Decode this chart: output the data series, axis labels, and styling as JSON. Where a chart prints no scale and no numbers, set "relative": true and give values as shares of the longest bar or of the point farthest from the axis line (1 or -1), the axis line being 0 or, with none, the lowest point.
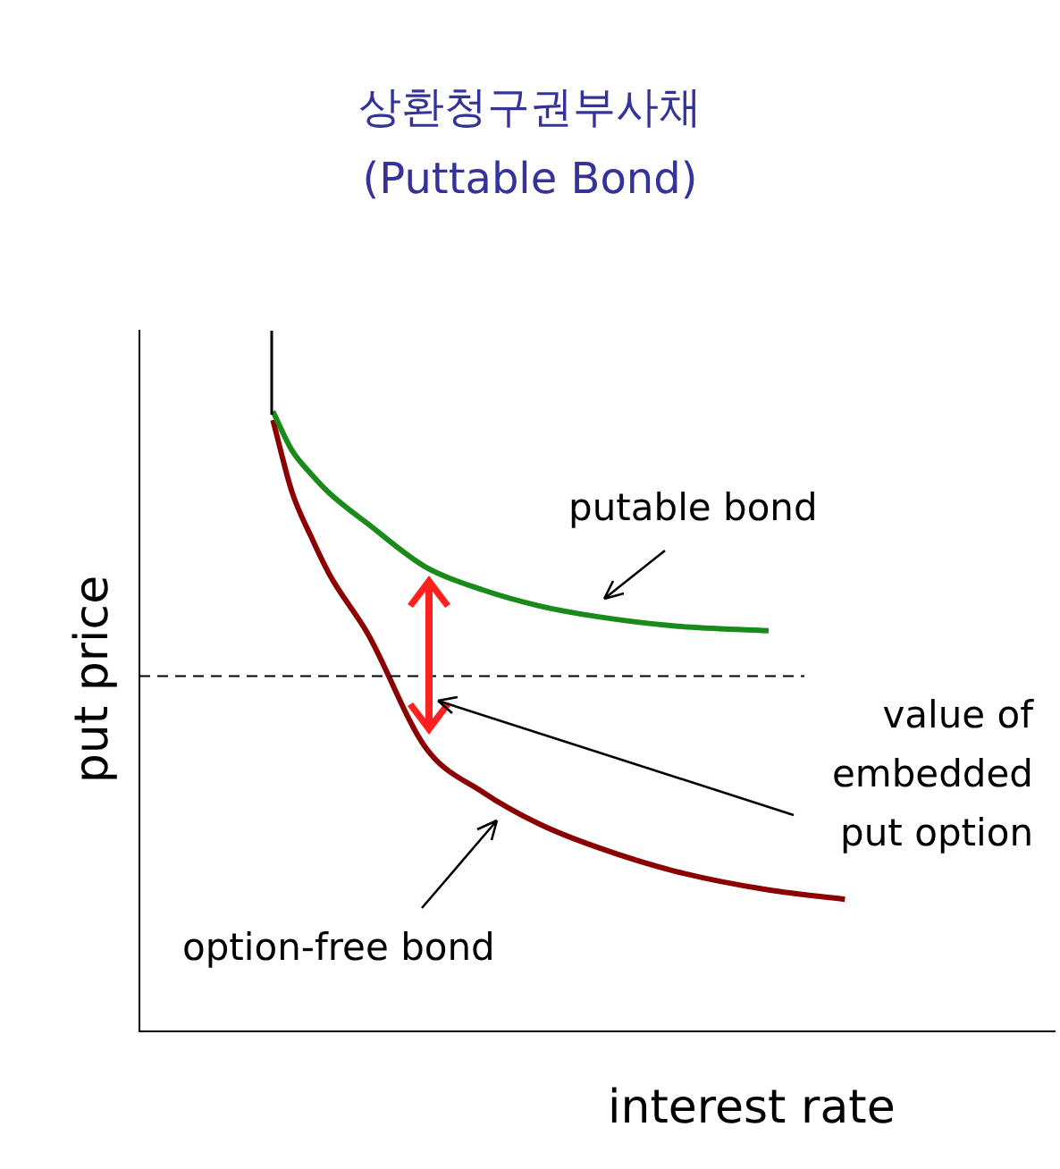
{
  "chart_data": {
    "type": "line",
    "title": "상환청구권부사채",
    "subtitle": "(Puttable Bond)",
    "xlabel": "interest rate",
    "ylabel": "put price",
    "relative": true,
    "categories": [
      null,
      null,
      null,
      null,
      null,
      null,
      null,
      null,
      null,
      null,
      null,
      null,
      null,
      null,
      null,
      null,
      null,
      null,
      null,
      null,
      null,
      null,
      null,
      null,
      null,
      null,
      null,
      null,
      null,
      null,
      null,
      null,
      null,
      null,
      null,
      null,
      null,
      null,
      null,
      null,
      null,
      null,
      null,
      null,
      null,
      null,
      null,
      null,
      null
    ],
    "series": [
      {
        "color": "#1a8a1a",
        "values": [
          null,
          null,
          null,
          null,
          null,
          null,
          null,
          1.0,
          0.937,
          0.899,
          0.867,
          null,
          0.818,
          null,
          null,
          0.749,
          null,
          null,
          0.712,
          null,
          null,
          0.686,
          null,
          null,
          0.669,
          null,
          null,
          null,
          0.654,
          null,
          null,
          null,
          null,
          0.646,
          null,
          null,
          null,
          null,
          null,
          null,
          null,
          null,
          null,
          null,
          null,
          null,
          null,
          null,
          null
        ]
      },
      {
        "color": "#8b0000",
        "values": [
          null,
          null,
          null,
          null,
          null,
          null,
          null,
          0.986,
          0.87,
          0.798,
          0.735,
          null,
          0.64,
          null,
          null,
          0.458,
          null,
          null,
          0.386,
          null,
          null,
          0.334,
          null,
          null,
          0.297,
          null,
          null,
          null,
          0.259,
          null,
          null,
          null,
          null,
          0.228,
          null,
          null,
          null,
          0.213,
          null,
          null,
          null,
          null,
          null,
          null,
          null,
          null,
          null,
          null,
          null
        ]
      }
    ],
    "ref_lines": [
      {
        "axis": "y",
        "value": 0.573,
        "color": "#000000",
        "line_style": "dashed"
      }
    ],
    "annotations": [
      "putable bond",
      "value of\nembedded\nput option",
      "option-free bond"
    ],
    "grid": false,
    "legend": false,
    "marker": "none",
    "line_style": "solid"
  }
}
